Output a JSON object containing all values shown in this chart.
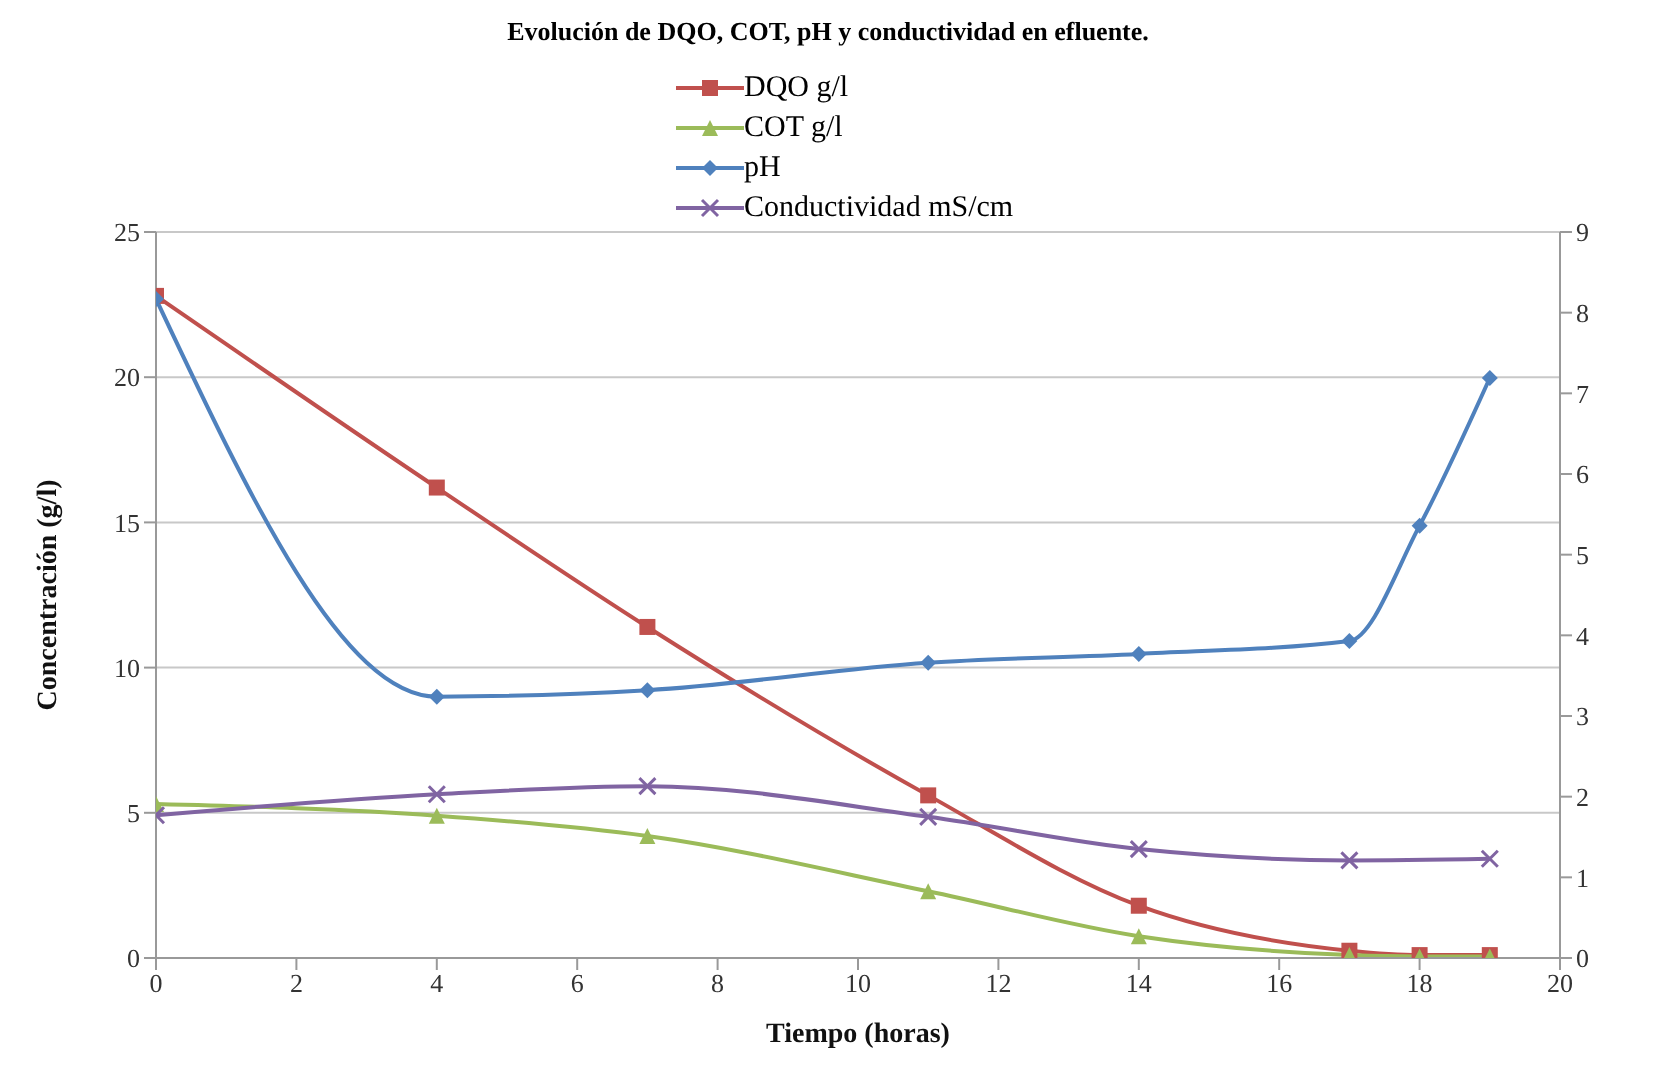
{
  "chart_data": {
    "type": "line",
    "title": "Evolución de DQO, COT, pH y conductividad en efluente.",
    "xlabel": "Tiempo (horas)",
    "ylabel": "Concentración (g/l)",
    "x": [
      0,
      4,
      7,
      11,
      14,
      17,
      18,
      19
    ],
    "series": [
      {
        "name": "DQO  g/l",
        "color": "#c0504d",
        "marker": "square",
        "values": [
          22.8,
          16.2,
          11.4,
          5.6,
          1.8,
          0.25,
          0.1,
          0.1
        ]
      },
      {
        "name": "COT  g/l",
        "color": "#9bbb59",
        "marker": "triangle",
        "values": [
          5.3,
          4.9,
          4.2,
          2.3,
          0.75,
          0.1,
          0.05,
          0.05
        ]
      },
      {
        "name": "pH",
        "color": "#4f81bd",
        "marker": "diamond",
        "axis": "y2",
        "values": [
          8.17,
          3.24,
          3.32,
          3.66,
          3.77,
          3.93,
          5.36,
          7.19
        ]
      },
      {
        "name": "Conductividad  mS/cm",
        "color": "#8064a2",
        "marker": "cross",
        "axis": "y2",
        "values": [
          1.77,
          2.03,
          2.13,
          1.75,
          1.35,
          1.21,
          null,
          1.23
        ]
      }
    ],
    "xlim": [
      0,
      20
    ],
    "xticks": [
      0,
      2,
      4,
      6,
      8,
      10,
      12,
      14,
      16,
      18,
      20
    ],
    "ylim": [
      0,
      25
    ],
    "yticks": [
      0,
      5,
      10,
      15,
      20,
      25
    ],
    "y2lim": [
      0,
      9
    ],
    "y2ticks": [
      0,
      1,
      2,
      3,
      4,
      5,
      6,
      7,
      8,
      9
    ],
    "grid": "y",
    "legend": "top"
  }
}
